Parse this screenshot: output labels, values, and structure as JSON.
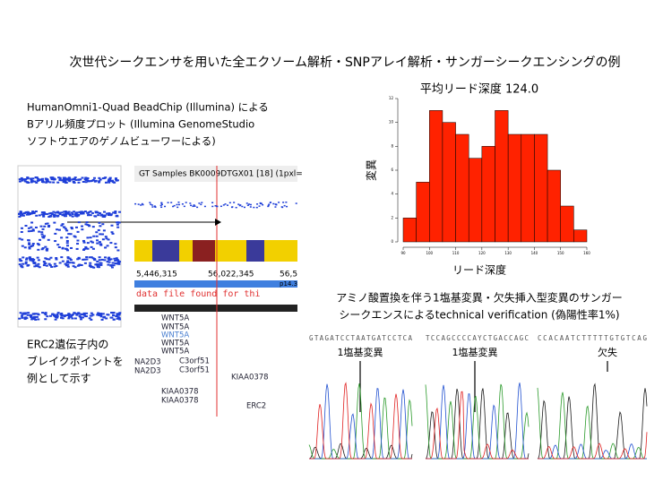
{
  "title": "次世代シークエンサを用いた全エクソーム解析・SNPアレイ解析・サンガーシークエンシングの例",
  "snp_array": {
    "caption": [
      "HumanOmni1-Quad BeadChip (Illumina) による",
      "Bアリル頻度プロット (Illumina GenomeStudio",
      "ソフトウエアのゲノムビューワーによる)"
    ],
    "browser": {
      "header": "GT Samples BK0009DTGX01 [18] (1pxl=",
      "positions": [
        "5,446,315",
        "56,022,345",
        "56,5"
      ],
      "band": "p14.3",
      "message": "data file found for thi",
      "genes": [
        "WNT5A",
        "WNT5A",
        "WNT5A",
        "WNT5A",
        "WNT5A",
        "NA2D3",
        "NA2D3",
        "C3orf51",
        "C3orf51",
        "KIAA0378",
        "KIAA0378",
        "KIAA0378",
        "ERC2"
      ]
    },
    "note": [
      "ERC2遺伝子内の",
      "ブレイクポイントを",
      "例として示す"
    ]
  },
  "chart_data": {
    "type": "histogram",
    "title": "平均リード深度 124.0",
    "xlabel": "リード深度",
    "ylabel": "変異",
    "bins": [
      90,
      95,
      100,
      105,
      110,
      115,
      120,
      125,
      130,
      135,
      140,
      145,
      150,
      155,
      160
    ],
    "values": [
      2,
      5,
      11,
      10,
      9,
      7,
      8,
      11,
      9,
      9,
      9,
      6,
      3,
      1
    ],
    "color": "#ff2200",
    "xlim": [
      90,
      160
    ],
    "xticks": [
      90,
      100,
      110,
      120,
      130,
      140,
      150,
      160
    ],
    "ylim": [
      0,
      12
    ],
    "yticks": [
      0,
      2,
      4,
      6,
      8,
      10,
      12
    ]
  },
  "sanger": {
    "caption": [
      "アミノ酸置換を伴う1塩基変異・欠失挿入型変異のサンガー",
      "シークエンスによるtechnical verification (偽陽性率1%)"
    ],
    "traces": [
      {
        "sequence": "GTAGATCCTAATGATCCTCA",
        "label": "1塩基変異"
      },
      {
        "sequence": "TCCAGCCCCAYCTGACCAGC",
        "label": "1塩基変異"
      },
      {
        "sequence": "CCACAATCTTTTTGTGTCAG",
        "label": "欠失"
      }
    ]
  }
}
